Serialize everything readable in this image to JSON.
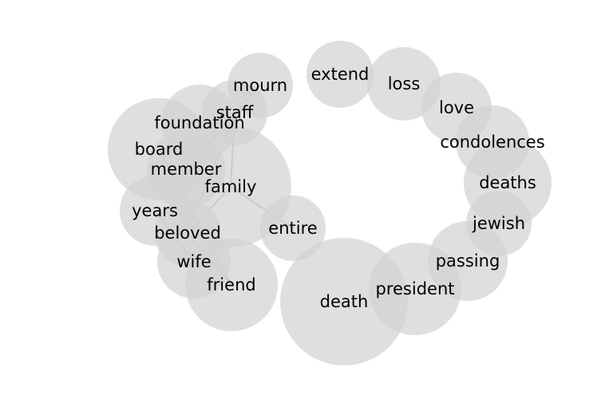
{
  "chart_data": {
    "type": "bubble-network",
    "words": [
      {
        "id": "mourn",
        "label": "mourn",
        "weight": 41
      },
      {
        "id": "extend",
        "label": "extend",
        "weight": 42
      },
      {
        "id": "loss",
        "label": "loss",
        "weight": 46
      },
      {
        "id": "love",
        "label": "love",
        "weight": 44
      },
      {
        "id": "condolences",
        "label": "condolences",
        "weight": 46
      },
      {
        "id": "staff",
        "label": "staff",
        "weight": 41
      },
      {
        "id": "foundation",
        "label": "foundation",
        "weight": 48
      },
      {
        "id": "board",
        "label": "board",
        "weight": 64
      },
      {
        "id": "member",
        "label": "member",
        "weight": 49
      },
      {
        "id": "family",
        "label": "family",
        "weight": 76
      },
      {
        "id": "years",
        "label": "years",
        "weight": 44
      },
      {
        "id": "beloved",
        "label": "beloved",
        "weight": 42
      },
      {
        "id": "entire",
        "label": "entire",
        "weight": 41
      },
      {
        "id": "wife",
        "label": "wife",
        "weight": 46
      },
      {
        "id": "friend",
        "label": "friend",
        "weight": 58
      },
      {
        "id": "death",
        "label": "death",
        "weight": 80
      },
      {
        "id": "president",
        "label": "president",
        "weight": 58
      },
      {
        "id": "passing",
        "label": "passing",
        "weight": 50
      },
      {
        "id": "jewish",
        "label": "jewish",
        "weight": 41
      },
      {
        "id": "deaths",
        "label": "deaths",
        "weight": 55
      }
    ],
    "links": [
      [
        "mourn",
        "foundation"
      ],
      [
        "mourn",
        "member"
      ],
      [
        "staff",
        "family"
      ],
      [
        "staff",
        "beloved"
      ],
      [
        "board",
        "friend"
      ],
      [
        "member",
        "beloved"
      ],
      [
        "family",
        "entire"
      ],
      [
        "family",
        "beloved"
      ],
      [
        "years",
        "wife"
      ],
      [
        "beloved",
        "friend"
      ]
    ]
  }
}
